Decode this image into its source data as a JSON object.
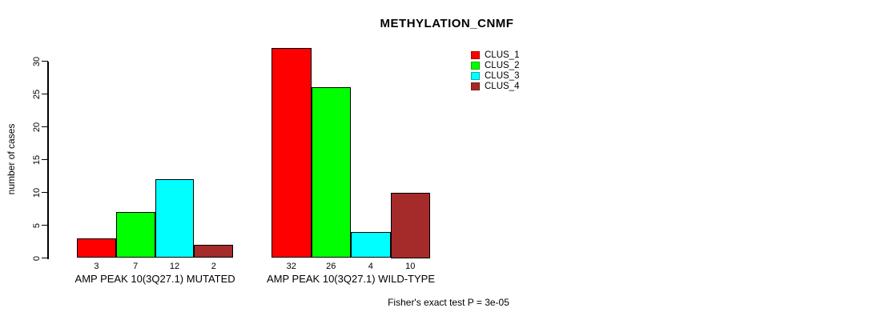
{
  "chart_data": {
    "type": "bar",
    "title": "METHYLATION_CNMF",
    "ylabel": "number of cases",
    "xlabel": "",
    "ylim": [
      0,
      30
    ],
    "yticks": [
      0,
      5,
      10,
      15,
      20,
      25,
      30
    ],
    "categories": [
      "AMP PEAK 10(3Q27.1) MUTATED",
      "AMP PEAK 10(3Q27.1) WILD-TYPE"
    ],
    "series": [
      {
        "name": "CLUS_1",
        "color": "#FF0000",
        "values": [
          3,
          32
        ]
      },
      {
        "name": "CLUS_2",
        "color": "#00FF00",
        "values": [
          7,
          26
        ]
      },
      {
        "name": "CLUS_3",
        "color": "#00FFFF",
        "values": [
          12,
          4
        ]
      },
      {
        "name": "CLUS_4",
        "color": "#A52A2A",
        "values": [
          2,
          10
        ]
      }
    ],
    "bar_value_labels_shown": true,
    "annotation": "Fisher's exact test P = 3e-05",
    "legend": {
      "position": "top-right",
      "entries": [
        "CLUS_1",
        "CLUS_2",
        "CLUS_3",
        "CLUS_4"
      ]
    },
    "grid": false,
    "background": "#ffffff"
  }
}
